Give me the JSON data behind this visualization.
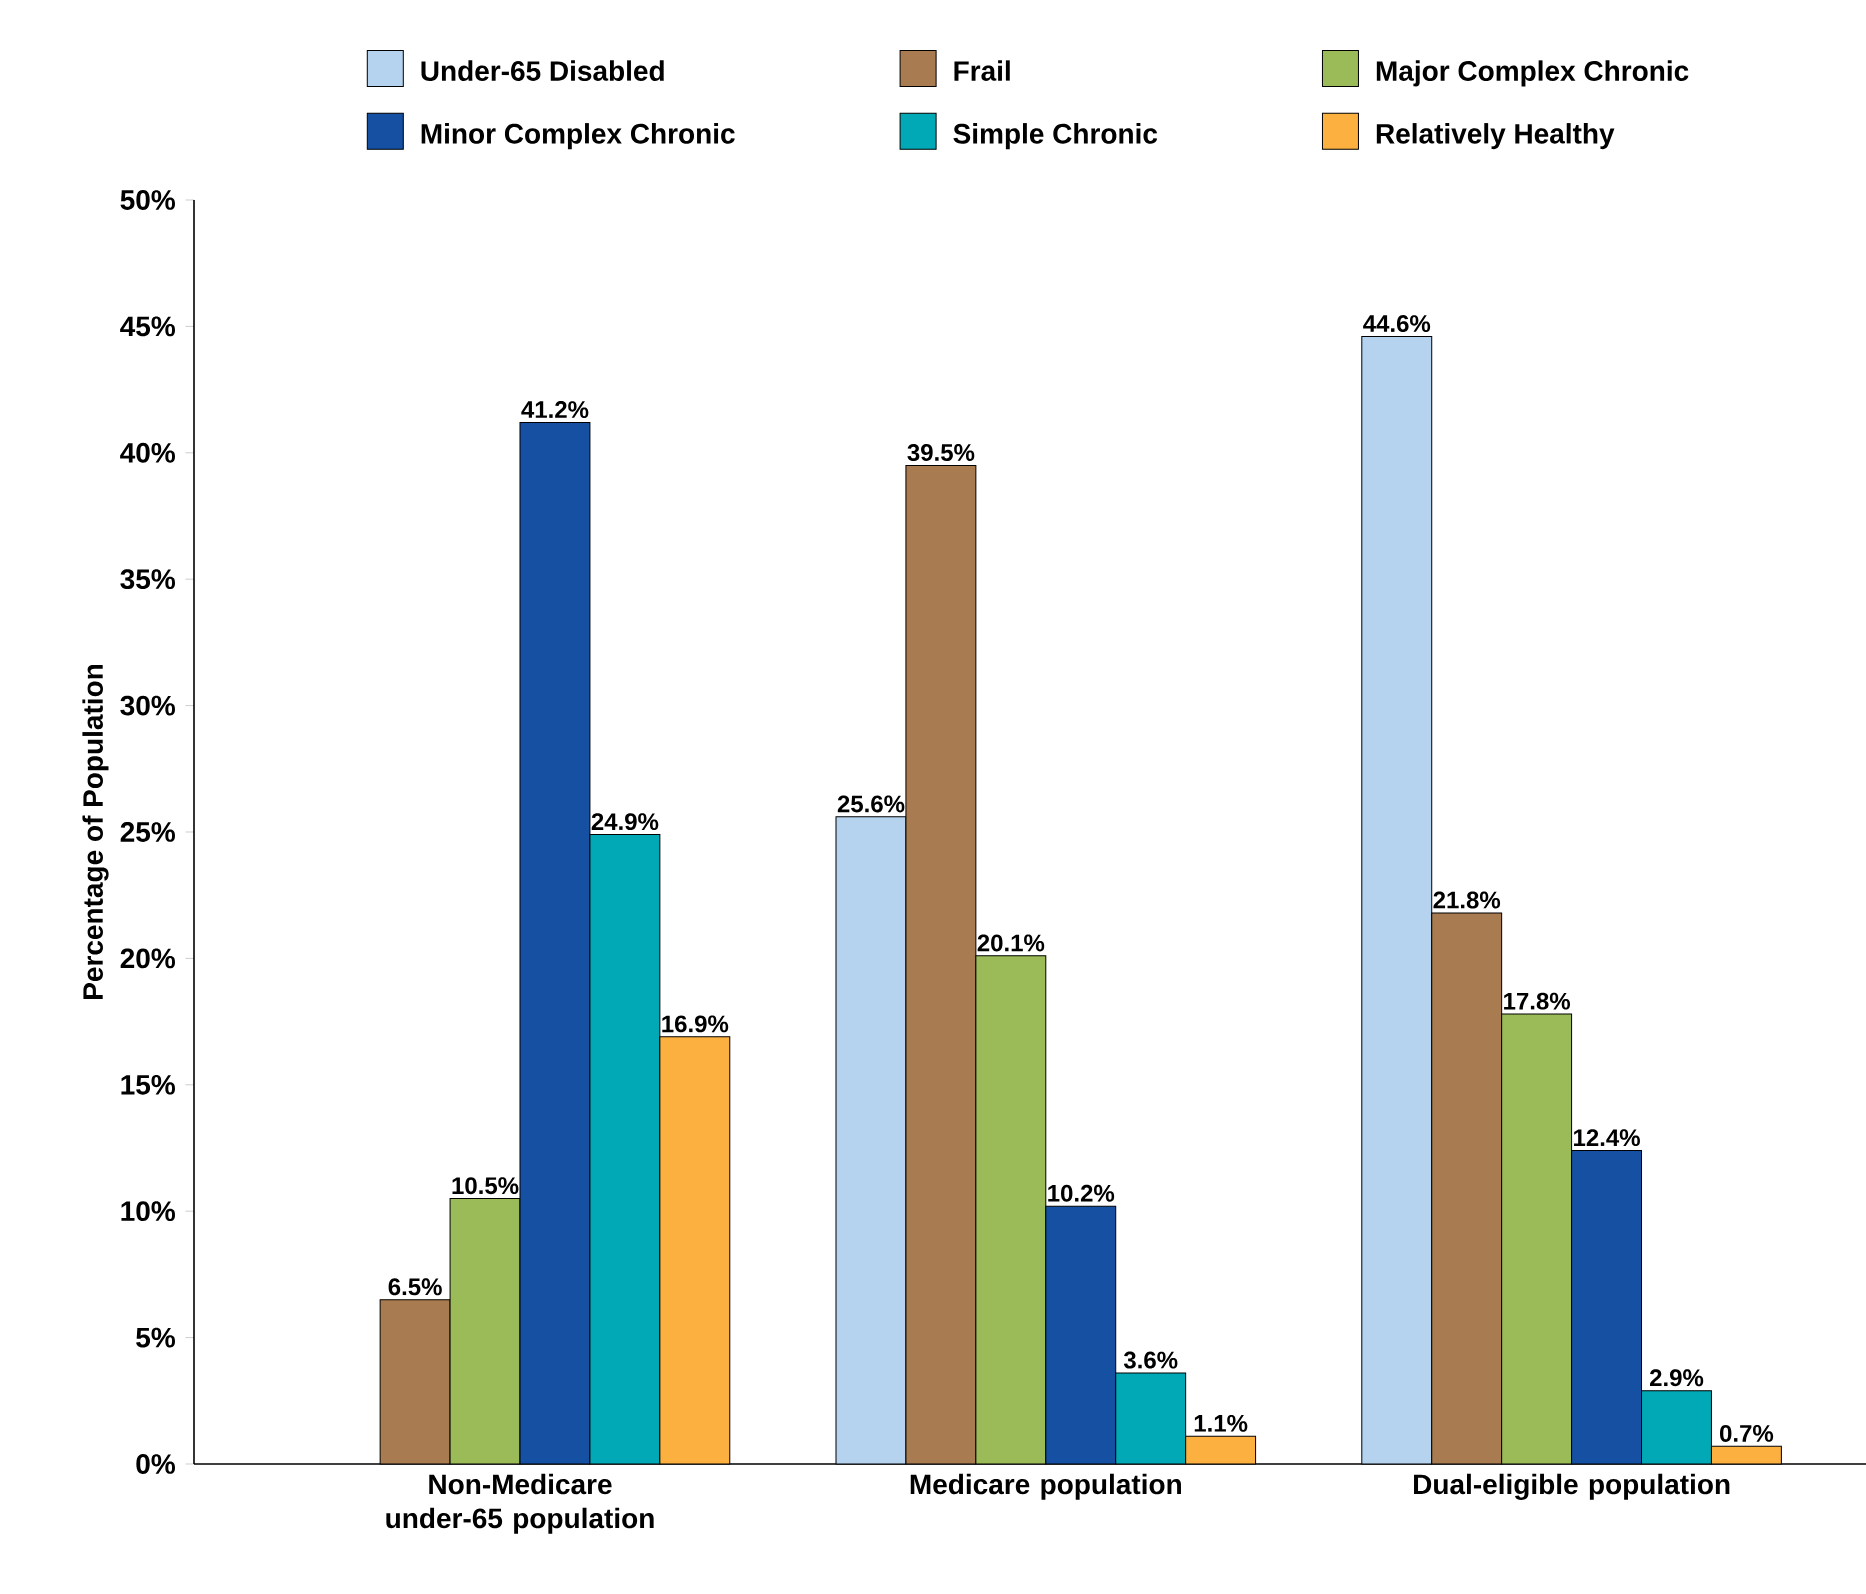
{
  "chart_data": {
    "type": "bar",
    "ylabel": "Percentage of Population",
    "categories": [
      "Non-Medicare under-65 population",
      "Medicare population",
      "Dual-eligible population"
    ],
    "series": [
      {
        "name": "Under-65 Disabled",
        "color": "#b5d3ee",
        "values": [
          null,
          25.6,
          44.6
        ],
        "value_labels": [
          null,
          "25.6%",
          "44.6%"
        ]
      },
      {
        "name": "Frail",
        "color": "#a87b50",
        "values": [
          6.5,
          39.5,
          21.8
        ],
        "value_labels": [
          "6.5%",
          "39.5%",
          "21.8%"
        ]
      },
      {
        "name": "Major Complex Chronic",
        "color": "#9bbb59",
        "values": [
          10.5,
          20.1,
          17.8
        ],
        "value_labels": [
          "10.5%",
          "20.1%",
          "17.8%"
        ]
      },
      {
        "name": "Minor Complex Chronic",
        "color": "#1550a3",
        "values": [
          41.2,
          10.2,
          12.4
        ],
        "value_labels": [
          "41.2%",
          "10.2%",
          "12.4%"
        ]
      },
      {
        "name": "Simple Chronic",
        "color": "#00a9b5",
        "values": [
          24.9,
          3.6,
          2.9
        ],
        "value_labels": [
          "24.9%",
          "3.6%",
          "2.9%"
        ]
      },
      {
        "name": "Relatively Healthy",
        "color": "#fbb040",
        "values": [
          16.9,
          1.1,
          0.7
        ],
        "value_labels": [
          "16.9%",
          "1.1%",
          "0.7%"
        ]
      }
    ],
    "ylim": [
      0,
      50
    ],
    "yticks": [
      {
        "value": 0,
        "label": "0%"
      },
      {
        "value": 5,
        "label": "5%"
      },
      {
        "value": 10,
        "label": "10%"
      },
      {
        "value": 15,
        "label": "15%"
      },
      {
        "value": 20,
        "label": "20%"
      },
      {
        "value": 25,
        "label": "25%"
      },
      {
        "value": 30,
        "label": "30%"
      },
      {
        "value": 35,
        "label": "35%"
      },
      {
        "value": 40,
        "label": "40%"
      },
      {
        "value": 45,
        "label": "45%"
      },
      {
        "value": 50,
        "label": "50%"
      }
    ],
    "grid": false,
    "legend": "top"
  }
}
